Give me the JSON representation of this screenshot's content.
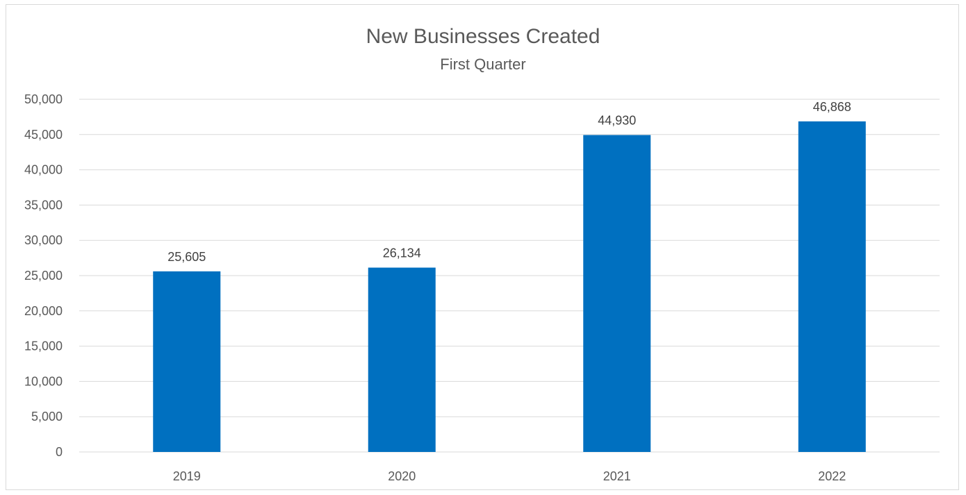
{
  "chart_data": {
    "type": "bar",
    "title": "New Businesses Created",
    "subtitle": "First Quarter",
    "xlabel": "",
    "ylabel": "",
    "categories": [
      "2019",
      "2020",
      "2021",
      "2022"
    ],
    "values": [
      25605,
      26134,
      44930,
      46868
    ],
    "value_labels": [
      "25,605",
      "26,134",
      "44,930",
      "46,868"
    ],
    "ylim": [
      0,
      50000
    ],
    "yticks": [
      0,
      5000,
      10000,
      15000,
      20000,
      25000,
      30000,
      35000,
      40000,
      45000,
      50000
    ],
    "ytick_labels": [
      "0",
      "5,000",
      "10,000",
      "15,000",
      "20,000",
      "25,000",
      "30,000",
      "35,000",
      "40,000",
      "45,000",
      "50,000"
    ],
    "grid": true,
    "legend": "none",
    "bar_color": "#0070c0",
    "grid_color": "#d9d9d9"
  }
}
